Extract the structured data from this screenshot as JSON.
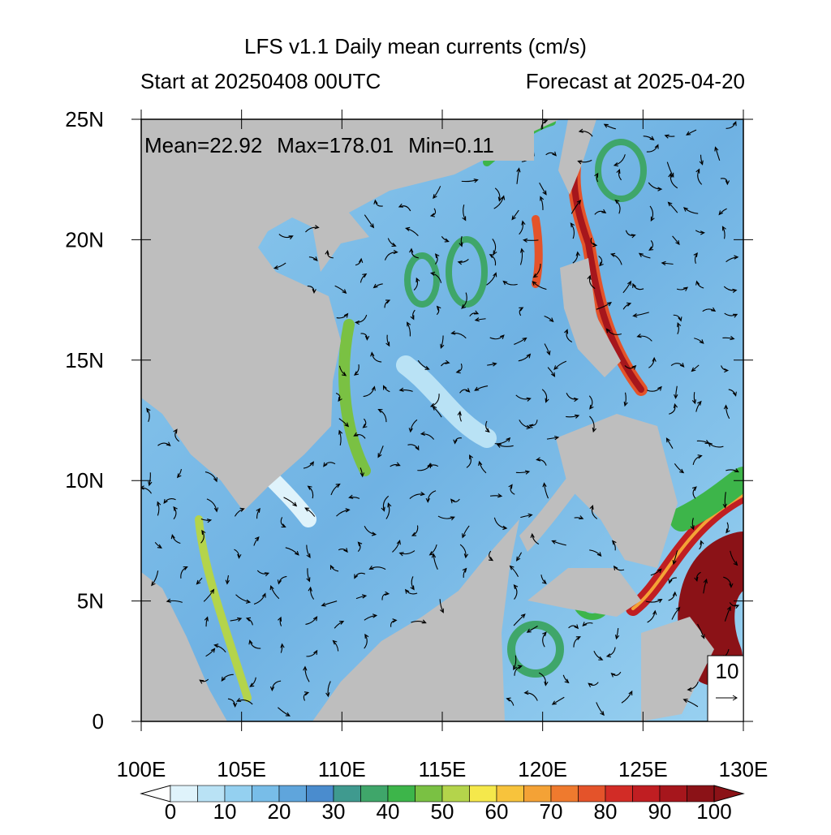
{
  "title": "LFS v1.1 Daily mean currents (cm/s)",
  "subtitle_left": "Start at 20250408 00UTC",
  "subtitle_right": "Forecast at 2025-04-20",
  "stats": [
    "Mean=22.92",
    "Max=178.01",
    "Min=0.11"
  ],
  "xlim": [
    100,
    130
  ],
  "ylim": [
    0,
    25
  ],
  "xticks": [
    {
      "value": 100,
      "label": "100E"
    },
    {
      "value": 105,
      "label": "105E"
    },
    {
      "value": 110,
      "label": "110E"
    },
    {
      "value": 115,
      "label": "115E"
    },
    {
      "value": 120,
      "label": "120E"
    },
    {
      "value": 125,
      "label": "125E"
    },
    {
      "value": 130,
      "label": "130E"
    }
  ],
  "yticks": [
    0,
    {
      "value": 5,
      "label": "5N"
    },
    {
      "value": 10,
      "label": "10N"
    },
    {
      "value": 15,
      "label": "15N"
    },
    {
      "value": 20,
      "label": "20N"
    },
    {
      "value": 25,
      "label": "25N"
    }
  ],
  "reference_vector": 10,
  "colorbar": {
    "ticks": [
      0,
      10,
      20,
      30,
      40,
      50,
      60,
      70,
      80,
      90,
      100
    ],
    "under_color": "#ffffff",
    "over_color": "#8b1217",
    "colors": [
      "#dff3fb",
      "#b9e2f5",
      "#94d0f0",
      "#78bde8",
      "#5fa5dc",
      "#4a8cce",
      "#3f9a8f",
      "#3fa66a",
      "#3db54a",
      "#7ac143",
      "#b4d44b",
      "#f5e84b",
      "#f7c33c",
      "#f4a236",
      "#ef7a2e",
      "#e4532a",
      "#d22c26",
      "#c01e22",
      "#a6161c",
      "#8b1217"
    ]
  }
}
